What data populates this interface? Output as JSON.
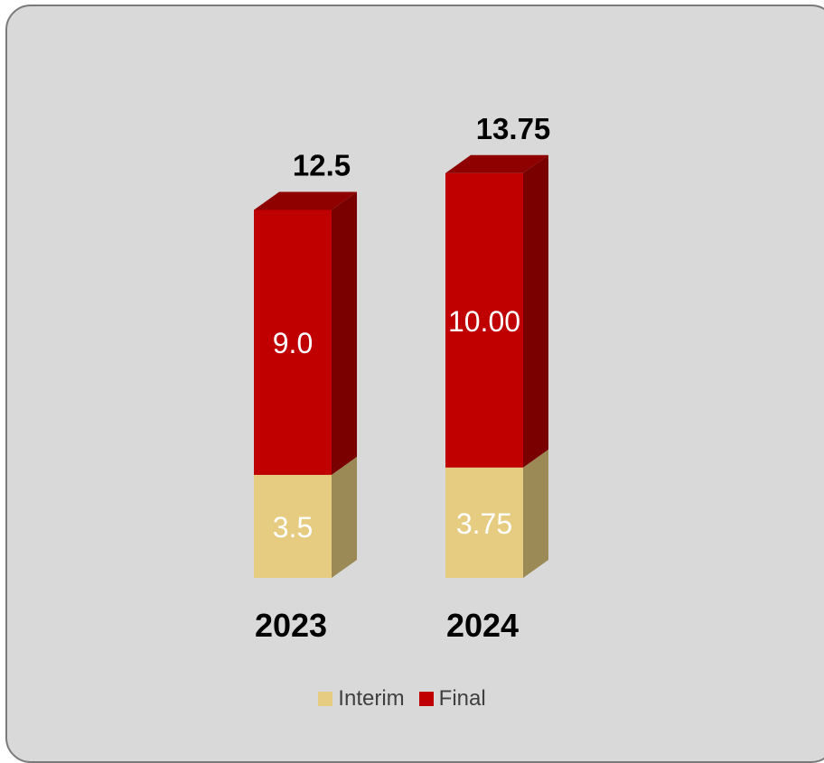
{
  "chart_data": {
    "type": "bar",
    "stacked": true,
    "style": "3d",
    "categories": [
      "2023",
      "2024"
    ],
    "series": [
      {
        "name": "Interim",
        "values": [
          3.5,
          3.75
        ],
        "labels": [
          "3.5",
          "3.75"
        ],
        "color": "#e6cc80"
      },
      {
        "name": "Final",
        "values": [
          9.0,
          10.0
        ],
        "labels": [
          "9.0",
          "10.00"
        ],
        "color": "#c00000"
      }
    ],
    "totals": [
      12.5,
      13.75
    ],
    "total_labels": [
      "12.5",
      "13.75"
    ],
    "ylim": [
      0,
      15
    ],
    "grid": false,
    "legend_position": "bottom",
    "colors": {
      "background": "#d9d9d9",
      "border": "#7a7a7a",
      "interim_side": "#9b8a55",
      "final_side": "#7a0000"
    }
  }
}
